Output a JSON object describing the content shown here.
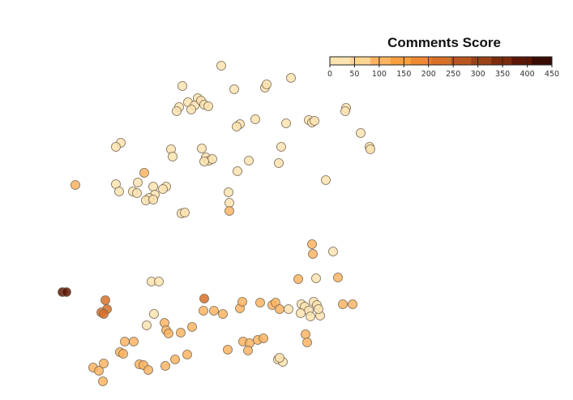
{
  "chart_data": {
    "type": "scatter",
    "title": "",
    "xlabel": "",
    "ylabel": "",
    "legend": {
      "title": "Comments Score",
      "placement": "top-right",
      "ticks": [
        "0",
        "50",
        "100",
        "150",
        "200",
        "250",
        "300",
        "350",
        "400",
        "450"
      ],
      "colors": [
        "#fde3b0",
        "#fdd595",
        "#fdb462",
        "#f9a03f",
        "#ee8a33",
        "#d87029",
        "#b9561f",
        "#994318",
        "#7c2b0d",
        "#5c1605",
        "#3a0b05"
      ]
    },
    "axes": {
      "visible": false,
      "grid": false,
      "xlim": [
        0,
        707
      ],
      "ylim": [
        0,
        493
      ]
    },
    "points": [
      {
        "x": 273,
        "y": 81,
        "v": 15
      },
      {
        "x": 225,
        "y": 106,
        "v": 15
      },
      {
        "x": 289,
        "y": 110,
        "v": 15
      },
      {
        "x": 327,
        "y": 108,
        "v": 15
      },
      {
        "x": 329,
        "y": 104,
        "v": 15
      },
      {
        "x": 359,
        "y": 96,
        "v": 15
      },
      {
        "x": 244,
        "y": 121,
        "v": 15
      },
      {
        "x": 232,
        "y": 126,
        "v": 15
      },
      {
        "x": 240,
        "y": 130,
        "v": 15
      },
      {
        "x": 248,
        "y": 124,
        "v": 15
      },
      {
        "x": 252,
        "y": 129,
        "v": 15
      },
      {
        "x": 221,
        "y": 132,
        "v": 15
      },
      {
        "x": 218,
        "y": 137,
        "v": 15
      },
      {
        "x": 257,
        "y": 131,
        "v": 15
      },
      {
        "x": 236,
        "y": 135,
        "v": 15
      },
      {
        "x": 427,
        "y": 133,
        "v": 15
      },
      {
        "x": 426,
        "y": 137,
        "v": 15
      },
      {
        "x": 315,
        "y": 147,
        "v": 15
      },
      {
        "x": 296,
        "y": 153,
        "v": 15
      },
      {
        "x": 292,
        "y": 156,
        "v": 15
      },
      {
        "x": 353,
        "y": 152,
        "v": 15
      },
      {
        "x": 381,
        "y": 148,
        "v": 15
      },
      {
        "x": 385,
        "y": 151,
        "v": 15
      },
      {
        "x": 388,
        "y": 149,
        "v": 15
      },
      {
        "x": 445,
        "y": 164,
        "v": 15
      },
      {
        "x": 456,
        "y": 181,
        "v": 15
      },
      {
        "x": 457,
        "y": 184,
        "v": 15
      },
      {
        "x": 149,
        "y": 176,
        "v": 15
      },
      {
        "x": 143,
        "y": 181,
        "v": 15
      },
      {
        "x": 211,
        "y": 184,
        "v": 15
      },
      {
        "x": 213,
        "y": 193,
        "v": 15
      },
      {
        "x": 249,
        "y": 183,
        "v": 15
      },
      {
        "x": 347,
        "y": 181,
        "v": 15
      },
      {
        "x": 254,
        "y": 194,
        "v": 15
      },
      {
        "x": 258,
        "y": 198,
        "v": 15
      },
      {
        "x": 262,
        "y": 196,
        "v": 15
      },
      {
        "x": 252,
        "y": 199,
        "v": 15
      },
      {
        "x": 307,
        "y": 198,
        "v": 15
      },
      {
        "x": 344,
        "y": 201,
        "v": 15
      },
      {
        "x": 293,
        "y": 211,
        "v": 15
      },
      {
        "x": 402,
        "y": 222,
        "v": 15
      },
      {
        "x": 93,
        "y": 228,
        "v": 125
      },
      {
        "x": 178,
        "y": 213,
        "v": 125
      },
      {
        "x": 143,
        "y": 227,
        "v": 15
      },
      {
        "x": 170,
        "y": 225,
        "v": 15
      },
      {
        "x": 189,
        "y": 230,
        "v": 15
      },
      {
        "x": 205,
        "y": 230,
        "v": 15
      },
      {
        "x": 201,
        "y": 233,
        "v": 15
      },
      {
        "x": 147,
        "y": 236,
        "v": 15
      },
      {
        "x": 164,
        "y": 236,
        "v": 15
      },
      {
        "x": 169,
        "y": 238,
        "v": 15
      },
      {
        "x": 191,
        "y": 240,
        "v": 15
      },
      {
        "x": 184,
        "y": 244,
        "v": 15
      },
      {
        "x": 180,
        "y": 247,
        "v": 15
      },
      {
        "x": 189,
        "y": 246,
        "v": 15
      },
      {
        "x": 282,
        "y": 237,
        "v": 15
      },
      {
        "x": 283,
        "y": 250,
        "v": 15
      },
      {
        "x": 224,
        "y": 263,
        "v": 15
      },
      {
        "x": 228,
        "y": 262,
        "v": 15
      },
      {
        "x": 283,
        "y": 260,
        "v": 125
      },
      {
        "x": 385,
        "y": 301,
        "v": 125
      },
      {
        "x": 411,
        "y": 310,
        "v": 15
      },
      {
        "x": 386,
        "y": 313,
        "v": 125
      },
      {
        "x": 368,
        "y": 344,
        "v": 125
      },
      {
        "x": 417,
        "y": 342,
        "v": 125
      },
      {
        "x": 390,
        "y": 343,
        "v": 15
      },
      {
        "x": 187,
        "y": 347,
        "v": 15
      },
      {
        "x": 196,
        "y": 347,
        "v": 15
      },
      {
        "x": 77,
        "y": 360,
        "v": 420
      },
      {
        "x": 82,
        "y": 360,
        "v": 420
      },
      {
        "x": 130,
        "y": 370,
        "v": 240
      },
      {
        "x": 132,
        "y": 381,
        "v": 240
      },
      {
        "x": 125,
        "y": 385,
        "v": 240
      },
      {
        "x": 128,
        "y": 387,
        "v": 240
      },
      {
        "x": 252,
        "y": 368,
        "v": 240
      },
      {
        "x": 251,
        "y": 383,
        "v": 125
      },
      {
        "x": 264,
        "y": 383,
        "v": 125
      },
      {
        "x": 275,
        "y": 387,
        "v": 125
      },
      {
        "x": 296,
        "y": 380,
        "v": 125
      },
      {
        "x": 299,
        "y": 372,
        "v": 125
      },
      {
        "x": 321,
        "y": 373,
        "v": 125
      },
      {
        "x": 336,
        "y": 376,
        "v": 125
      },
      {
        "x": 340,
        "y": 373,
        "v": 125
      },
      {
        "x": 345,
        "y": 381,
        "v": 125
      },
      {
        "x": 356,
        "y": 381,
        "v": 15
      },
      {
        "x": 372,
        "y": 375,
        "v": 15
      },
      {
        "x": 376,
        "y": 378,
        "v": 15
      },
      {
        "x": 381,
        "y": 383,
        "v": 15
      },
      {
        "x": 387,
        "y": 372,
        "v": 15
      },
      {
        "x": 391,
        "y": 376,
        "v": 15
      },
      {
        "x": 371,
        "y": 386,
        "v": 15
      },
      {
        "x": 383,
        "y": 390,
        "v": 15
      },
      {
        "x": 395,
        "y": 389,
        "v": 15
      },
      {
        "x": 393,
        "y": 381,
        "v": 15
      },
      {
        "x": 423,
        "y": 375,
        "v": 125
      },
      {
        "x": 435,
        "y": 375,
        "v": 125
      },
      {
        "x": 190,
        "y": 387,
        "v": 15
      },
      {
        "x": 203,
        "y": 398,
        "v": 125
      },
      {
        "x": 205,
        "y": 407,
        "v": 125
      },
      {
        "x": 208,
        "y": 411,
        "v": 125
      },
      {
        "x": 223,
        "y": 410,
        "v": 125
      },
      {
        "x": 237,
        "y": 403,
        "v": 125
      },
      {
        "x": 181,
        "y": 401,
        "v": 15
      },
      {
        "x": 377,
        "y": 412,
        "v": 125
      },
      {
        "x": 379,
        "y": 422,
        "v": 125
      },
      {
        "x": 300,
        "y": 421,
        "v": 125
      },
      {
        "x": 308,
        "y": 423,
        "v": 125
      },
      {
        "x": 318,
        "y": 419,
        "v": 125
      },
      {
        "x": 325,
        "y": 417,
        "v": 125
      },
      {
        "x": 306,
        "y": 432,
        "v": 125
      },
      {
        "x": 281,
        "y": 431,
        "v": 125
      },
      {
        "x": 154,
        "y": 421,
        "v": 125
      },
      {
        "x": 165,
        "y": 421,
        "v": 125
      },
      {
        "x": 148,
        "y": 434,
        "v": 125
      },
      {
        "x": 152,
        "y": 436,
        "v": 125
      },
      {
        "x": 231,
        "y": 437,
        "v": 125
      },
      {
        "x": 216,
        "y": 443,
        "v": 125
      },
      {
        "x": 343,
        "y": 443,
        "v": 15
      },
      {
        "x": 349,
        "y": 446,
        "v": 15
      },
      {
        "x": 345,
        "y": 441,
        "v": 15
      },
      {
        "x": 128,
        "y": 448,
        "v": 125
      },
      {
        "x": 115,
        "y": 453,
        "v": 125
      },
      {
        "x": 122,
        "y": 457,
        "v": 125
      },
      {
        "x": 127,
        "y": 470,
        "v": 125
      },
      {
        "x": 172,
        "y": 449,
        "v": 125
      },
      {
        "x": 177,
        "y": 450,
        "v": 125
      },
      {
        "x": 183,
        "y": 456,
        "v": 125
      },
      {
        "x": 204,
        "y": 451,
        "v": 125
      }
    ]
  }
}
